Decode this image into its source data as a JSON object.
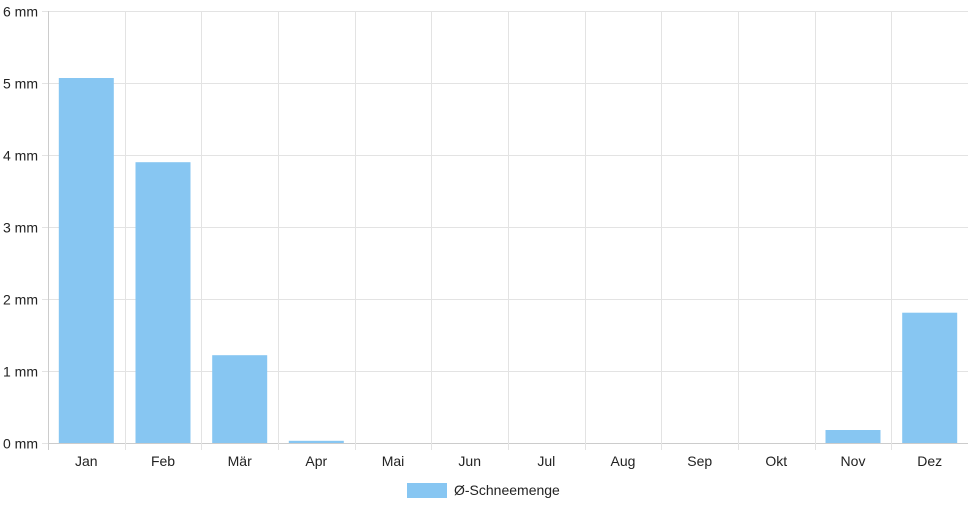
{
  "chart_data": {
    "type": "bar",
    "categories": [
      "Jan",
      "Feb",
      "Mär",
      "Apr",
      "Mai",
      "Jun",
      "Jul",
      "Aug",
      "Sep",
      "Okt",
      "Nov",
      "Dez"
    ],
    "series": [
      {
        "name": "Ø-Schneemenge",
        "values": [
          5.07,
          3.9,
          1.22,
          0.03,
          0,
          0,
          0,
          0,
          0,
          0,
          0.18,
          1.81
        ]
      }
    ],
    "ylim": [
      0,
      6
    ],
    "yticks": [
      0,
      1,
      2,
      3,
      4,
      5,
      6
    ],
    "yunit": "mm",
    "grid": true,
    "legend": "bottom-center",
    "colors": {
      "bar": "#87c6f2",
      "grid": "#e3e3e3",
      "axis": "#cccccc",
      "text": "#222222"
    }
  }
}
